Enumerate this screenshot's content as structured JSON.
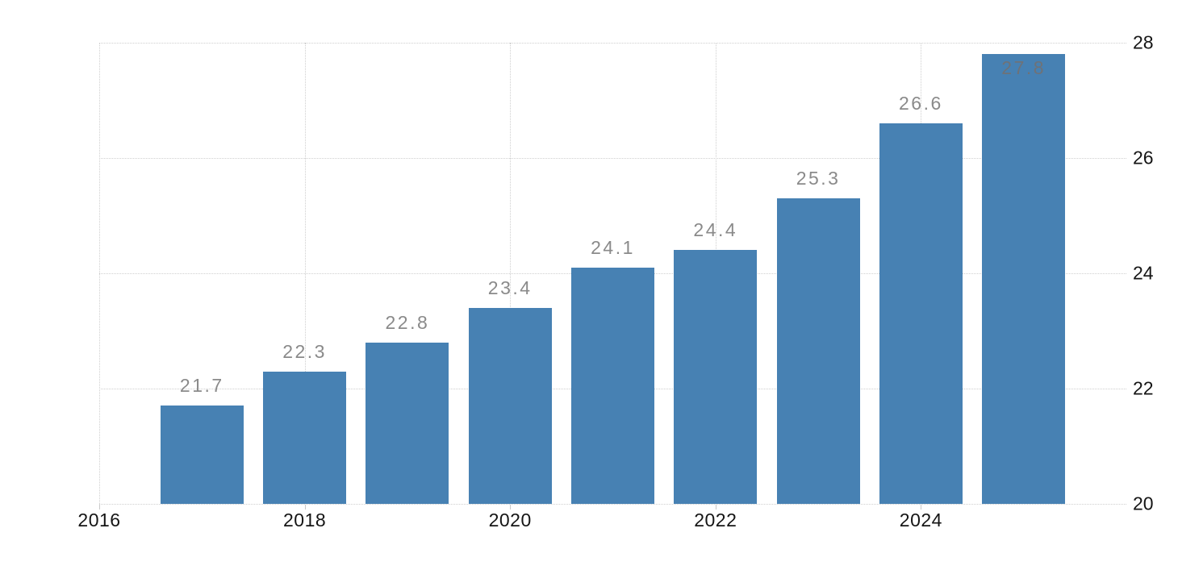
{
  "chart_data": {
    "type": "bar",
    "title": "",
    "xlabel": "",
    "ylabel": "",
    "categories": [
      2017,
      2018,
      2019,
      2020,
      2021,
      2022,
      2023,
      2024,
      2025
    ],
    "values": [
      21.7,
      22.3,
      22.8,
      23.4,
      24.1,
      24.4,
      25.3,
      26.6,
      27.8
    ],
    "value_labels": [
      "21.7",
      "22.3",
      "22.8",
      "23.4",
      "24.1",
      "24.4",
      "25.3",
      "26.6",
      "27.8"
    ],
    "x_tick_positions": [
      2016,
      2018,
      2020,
      2022,
      2024
    ],
    "x_tick_labels": [
      "2016",
      "2018",
      "2020",
      "2022",
      "2024"
    ],
    "y_tick_values": [
      20,
      22,
      24,
      26,
      28
    ],
    "y_tick_labels": [
      "20",
      "22",
      "24",
      "26",
      "28"
    ],
    "xlim": [
      2016,
      2026
    ],
    "ylim": [
      20,
      28
    ],
    "bar_width_fraction": 0.81,
    "grid": "dotted",
    "legend": "none",
    "y_axis_side": "right",
    "colors": {
      "bar": "#4781B3",
      "value_label": "#8A8A8A",
      "value_label_inside": "#6E7278",
      "axis_label": "#151515",
      "gridline": "#CFCFCF",
      "tick": "#C9C9C9",
      "background": "#FFFFFF"
    }
  }
}
